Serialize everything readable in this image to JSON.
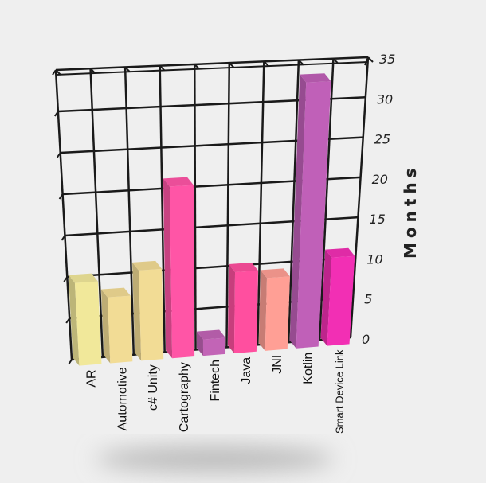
{
  "chart_data": {
    "type": "bar",
    "categories": [
      "AR",
      "Automotive",
      "c# Unity",
      "Cartography",
      "Fintech",
      "Java",
      "JNI",
      "Kotlin",
      "Smart Device Link"
    ],
    "values": [
      10,
      8,
      11,
      21,
      2,
      10,
      9,
      33,
      11
    ],
    "colors": [
      "#f1e89a",
      "#f2dc95",
      "#f2dc95",
      "#ff55a6",
      "#c264b6",
      "#ff4f9f",
      "#ff9f95",
      "#c060b8",
      "#f22fb4"
    ],
    "ylabel": "Months",
    "yticks": [
      0,
      5,
      10,
      15,
      20,
      25,
      30,
      35
    ],
    "ylim": [
      0,
      35
    ],
    "grid": true
  }
}
